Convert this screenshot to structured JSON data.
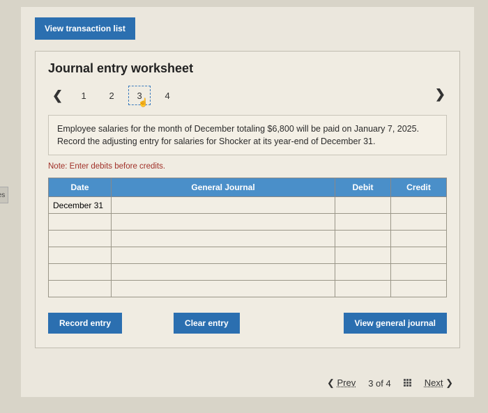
{
  "left_tab": "es",
  "view_transaction_label": "View transaction list",
  "worksheet": {
    "title": "Journal entry worksheet",
    "steps": [
      "1",
      "2",
      "3",
      "4"
    ],
    "active_step_index": 2,
    "instruction": "Employee salaries for the month of December totaling $6,800 will be paid on January 7, 2025. Record the adjusting entry for salaries for Shocker at its year-end of December 31.",
    "note": "Note: Enter debits before credits.",
    "table": {
      "headers": {
        "date": "Date",
        "general_journal": "General Journal",
        "debit": "Debit",
        "credit": "Credit"
      },
      "rows": [
        {
          "date": "December 31",
          "gj": "",
          "debit": "",
          "credit": ""
        },
        {
          "date": "",
          "gj": "",
          "debit": "",
          "credit": ""
        },
        {
          "date": "",
          "gj": "",
          "debit": "",
          "credit": ""
        },
        {
          "date": "",
          "gj": "",
          "debit": "",
          "credit": ""
        },
        {
          "date": "",
          "gj": "",
          "debit": "",
          "credit": ""
        },
        {
          "date": "",
          "gj": "",
          "debit": "",
          "credit": ""
        }
      ]
    },
    "actions": {
      "record": "Record entry",
      "clear": "Clear entry",
      "view_journal": "View general journal"
    }
  },
  "footer": {
    "prev": "Prev",
    "position": "3 of 4",
    "next": "Next"
  }
}
